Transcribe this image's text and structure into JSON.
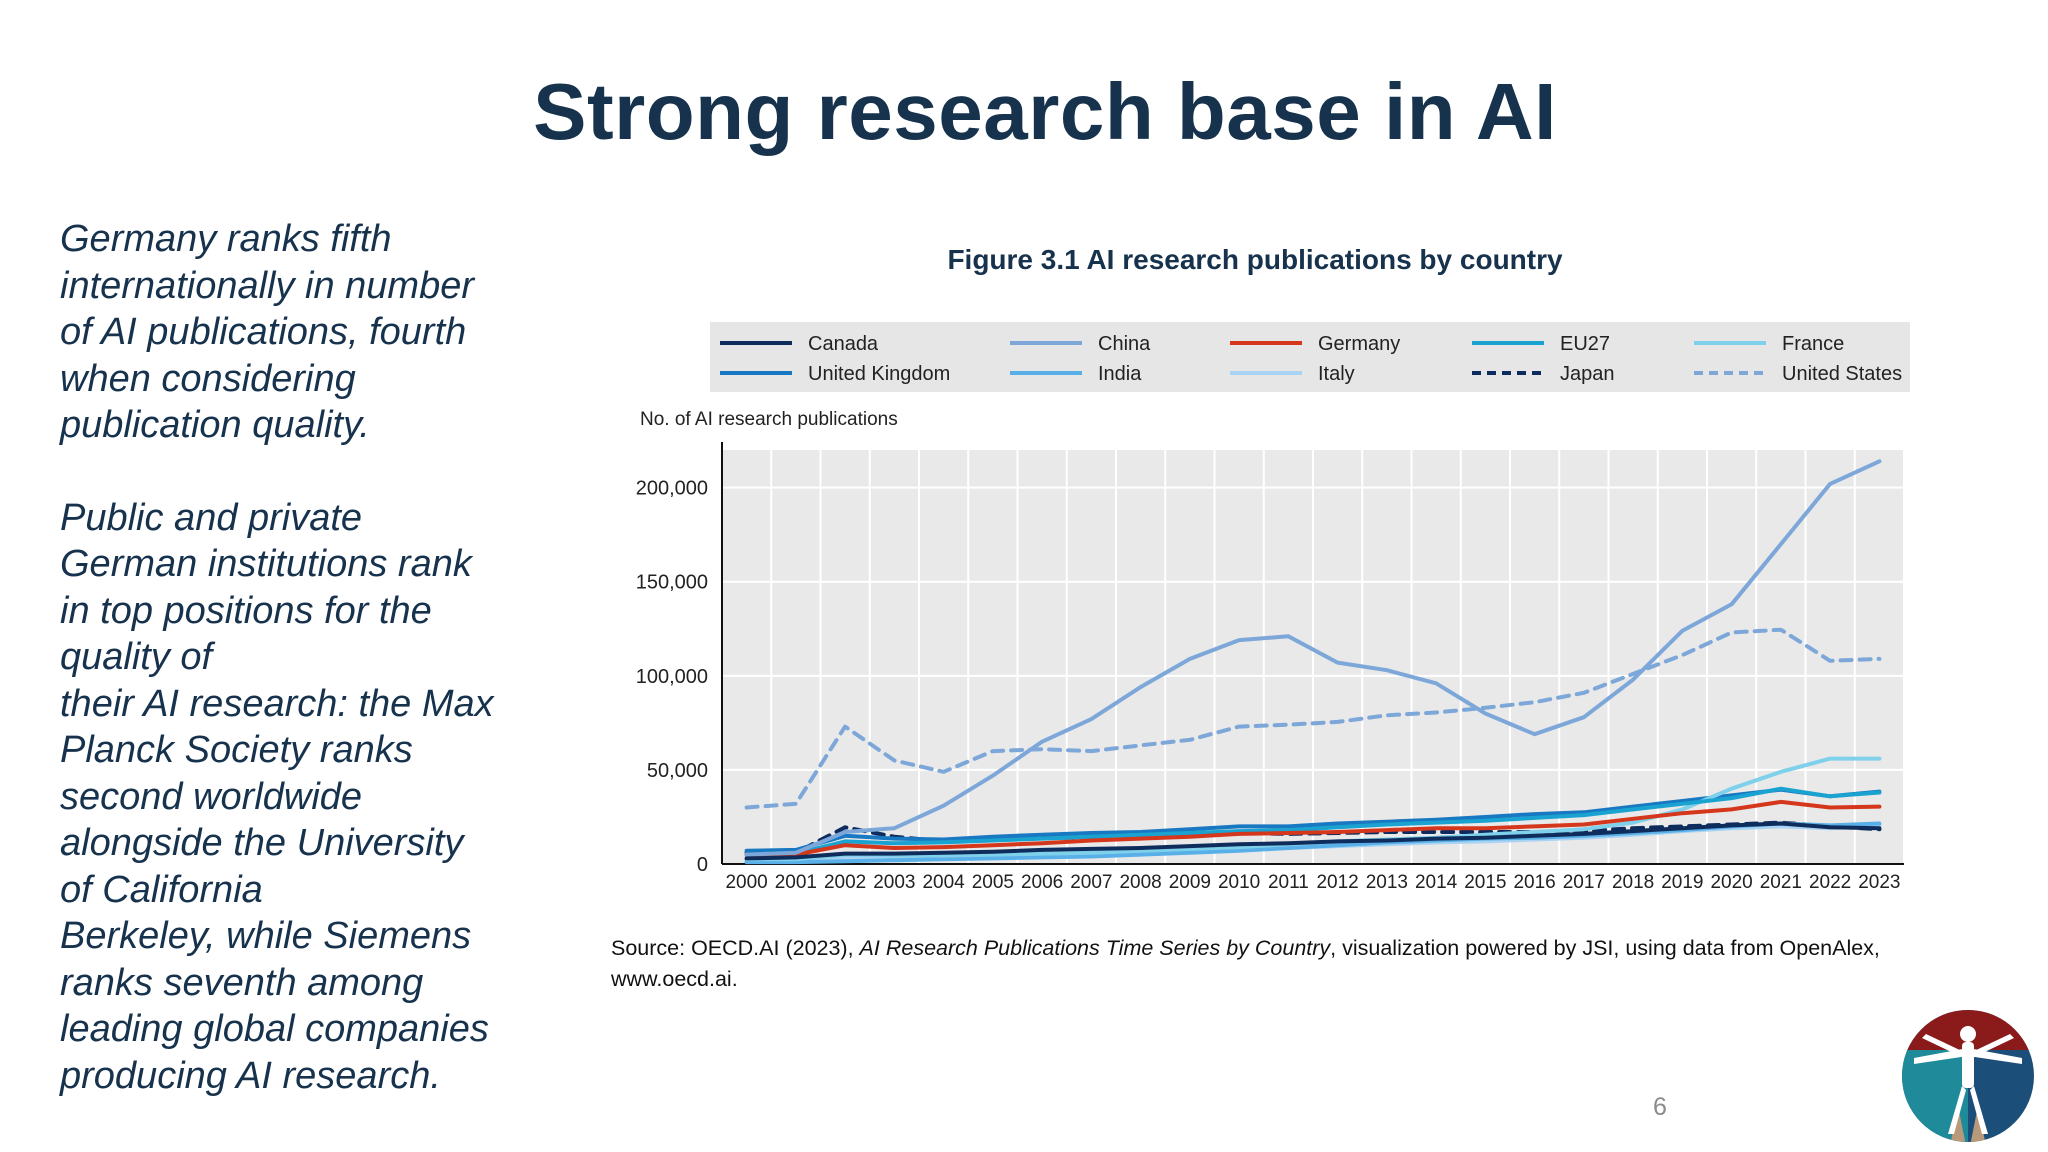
{
  "slide": {
    "title": "Strong research base in AI",
    "left_text": [
      "Germany ranks fifth\ninternationally in number\nof AI publications, fourth\nwhen considering\npublication quality.",
      "Public and private\nGerman institutions rank\nin top positions for the\nquality of\ntheir AI research: the Max\nPlanck Society ranks\nsecond worldwide\nalongside the University\nof California\nBerkeley, while Siemens\nranks seventh among\nleading global companies\nproducing AI research."
    ],
    "page_number": "6",
    "source": {
      "prefix": "Source: OECD.AI (2023), ",
      "italic": "AI Research Publications Time Series by Country",
      "suffix": ", visualization powered by JSI, using data from OpenAlex, www.oecd.ai."
    }
  },
  "chart_data": {
    "type": "line",
    "title": "Figure 3.1 AI research publications by country",
    "ylabel": "No. of AI research publications",
    "xlabel": "",
    "ylim": [
      0,
      220000
    ],
    "yticks": [
      0,
      50000,
      100000,
      150000,
      200000
    ],
    "ytick_labels": [
      "0",
      "50,000",
      "100,000",
      "150,000",
      "200,000"
    ],
    "grid": true,
    "legend_position": "top",
    "categories": [
      "2000",
      "2001",
      "2002",
      "2003",
      "2004",
      "2005",
      "2006",
      "2007",
      "2008",
      "2009",
      "2010",
      "2011",
      "2012",
      "2013",
      "2014",
      "2015",
      "2016",
      "2017",
      "2018",
      "2019",
      "2020",
      "2021",
      "2022",
      "2023"
    ],
    "series": [
      {
        "name": "Canada",
        "color": "#0f2d5c",
        "dash": false,
        "values": [
          3000,
          3500,
          5500,
          5500,
          6000,
          6500,
          7500,
          8000,
          8500,
          9500,
          10500,
          11000,
          12000,
          12500,
          13500,
          14000,
          15000,
          16000,
          17500,
          19000,
          20500,
          21500,
          19500,
          19000
        ]
      },
      {
        "name": "China",
        "color": "#7da7d9",
        "dash": false,
        "values": [
          5000,
          6000,
          17000,
          19000,
          31000,
          47000,
          65000,
          77000,
          94000,
          109000,
          119000,
          121000,
          107000,
          103000,
          96000,
          80000,
          69000,
          78000,
          98000,
          124000,
          138000,
          170000,
          202000,
          214000
        ]
      },
      {
        "name": "Germany",
        "color": "#d4371c",
        "dash": false,
        "values": [
          5000,
          5000,
          10000,
          8500,
          9000,
          10000,
          11000,
          12500,
          13500,
          14500,
          16000,
          16500,
          17000,
          18000,
          19000,
          19000,
          20000,
          21000,
          24000,
          27000,
          29000,
          33000,
          30000,
          30500
        ]
      },
      {
        "name": "EU27",
        "color": "#1aa3d0",
        "dash": false,
        "values": [
          5000,
          5500,
          12000,
          11000,
          11500,
          12500,
          13500,
          14500,
          15500,
          16500,
          17500,
          18000,
          19500,
          21000,
          22000,
          23000,
          24500,
          26000,
          29000,
          32000,
          35000,
          40000,
          36000,
          38000
        ]
      },
      {
        "name": "France",
        "color": "#7fd0ea",
        "dash": false,
        "values": [
          2500,
          2500,
          5000,
          4500,
          4500,
          5000,
          5500,
          6000,
          7000,
          8000,
          9000,
          10500,
          12000,
          13000,
          14000,
          15500,
          17000,
          18500,
          22000,
          29000,
          40000,
          49000,
          56000,
          56000
        ]
      },
      {
        "name": "United Kingdom",
        "color": "#1878c2",
        "dash": false,
        "values": [
          7000,
          7500,
          15000,
          13500,
          13000,
          14500,
          15500,
          16500,
          17000,
          18500,
          20000,
          20000,
          21500,
          22500,
          23500,
          25000,
          26500,
          27500,
          30500,
          33500,
          36500,
          39500,
          36000,
          38500
        ]
      },
      {
        "name": "India",
        "color": "#59b0e8",
        "dash": false,
        "values": [
          1000,
          1000,
          1500,
          2000,
          2500,
          3000,
          3500,
          4000,
          5000,
          6000,
          7000,
          8500,
          10000,
          11500,
          12500,
          13500,
          14000,
          15000,
          16500,
          18000,
          20000,
          21500,
          20500,
          21500
        ]
      },
      {
        "name": "Italy",
        "color": "#a9d3f2",
        "dash": false,
        "values": [
          1500,
          1500,
          3500,
          3000,
          3500,
          4000,
          4500,
          5000,
          5500,
          6500,
          7500,
          8500,
          9500,
          10500,
          11500,
          12000,
          13000,
          14000,
          15500,
          17500,
          19000,
          20000,
          19000,
          20500
        ]
      },
      {
        "name": "Japan",
        "color": "#0d2b5e",
        "dash": true,
        "values": [
          6000,
          6000,
          19500,
          14500,
          12000,
          13000,
          14000,
          14000,
          14500,
          15500,
          16500,
          16000,
          16500,
          17000,
          17000,
          17000,
          17000,
          17500,
          19000,
          20000,
          21000,
          22000,
          20000,
          18500
        ]
      },
      {
        "name": "United States",
        "color": "#7da7d9",
        "dash": true,
        "values": [
          30000,
          32000,
          73000,
          55000,
          49000,
          60000,
          61000,
          60000,
          63000,
          66000,
          73000,
          74000,
          75500,
          79000,
          80500,
          83000,
          86000,
          91000,
          101000,
          111000,
          123000,
          124500,
          108000,
          109000
        ]
      }
    ]
  }
}
